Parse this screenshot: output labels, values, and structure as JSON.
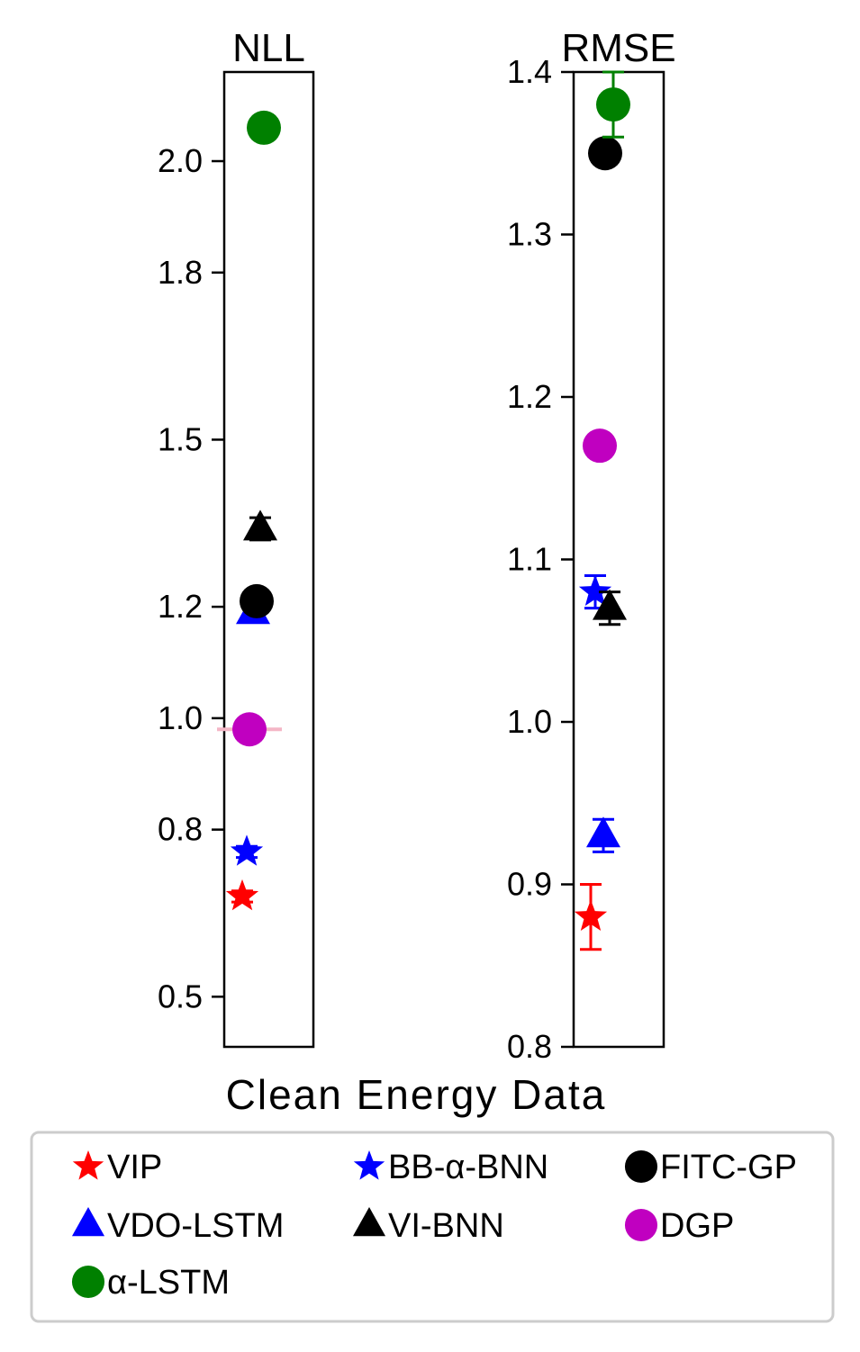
{
  "figure_title": "Clean Energy Data",
  "legend": [
    {
      "label": "VIP",
      "marker": "star",
      "color": "#ff0000"
    },
    {
      "label": "BB-α-BNN",
      "marker": "star",
      "color": "#0000ff"
    },
    {
      "label": "FITC-GP",
      "marker": "circle",
      "color": "#000000"
    },
    {
      "label": "VDO-LSTM",
      "marker": "triangle",
      "color": "#0000ff"
    },
    {
      "label": "VI-BNN",
      "marker": "triangle",
      "color": "#000000"
    },
    {
      "label": "DGP",
      "marker": "circle",
      "color": "#c000c0"
    },
    {
      "label": "α-LSTM",
      "marker": "circle",
      "color": "#008000"
    }
  ],
  "chart_data": [
    {
      "type": "scatter",
      "title": "NLL",
      "xlabel": "",
      "ylabel": "",
      "ylim": [
        0.41,
        2.16
      ],
      "yticks": [
        0.5,
        0.8,
        1.0,
        1.2,
        1.5,
        1.8,
        2.0
      ],
      "ytick_labels": [
        "0.5",
        "0.8",
        "1.0",
        "1.2",
        "1.5",
        "1.8",
        "2.0"
      ],
      "grid": false,
      "points": [
        {
          "name": "VIP",
          "marker": "star",
          "color": "#ff0000",
          "value": 0.68,
          "err": 0.01
        },
        {
          "name": "BB-α-BNN",
          "marker": "star",
          "color": "#0000ff",
          "value": 0.76,
          "err": 0.01
        },
        {
          "name": "VDO-LSTM",
          "marker": "triangle",
          "color": "#0000ff",
          "value": 1.19,
          "err": 0.01
        },
        {
          "name": "VI-BNN",
          "marker": "triangle",
          "color": "#000000",
          "value": 1.34,
          "err": 0.02
        },
        {
          "name": "FITC-GP",
          "marker": "circle",
          "color": "#000000",
          "value": 1.21,
          "err": 0.0
        },
        {
          "name": "DGP",
          "marker": "circle",
          "color": "#c000c0",
          "value": 0.98,
          "err": 0.0
        },
        {
          "name": "α-LSTM",
          "marker": "circle",
          "color": "#008000",
          "value": 2.06,
          "err": 0.0
        }
      ]
    },
    {
      "type": "scatter",
      "title": "RMSE",
      "xlabel": "",
      "ylabel": "",
      "ylim": [
        0.8,
        1.4
      ],
      "yticks": [
        0.8,
        0.9,
        1.0,
        1.1,
        1.2,
        1.3,
        1.4
      ],
      "ytick_labels": [
        "0.8",
        "0.9",
        "1.0",
        "1.1",
        "1.2",
        "1.3",
        "1.4"
      ],
      "grid": false,
      "points": [
        {
          "name": "VIP",
          "marker": "star",
          "color": "#ff0000",
          "value": 0.88,
          "err": 0.02
        },
        {
          "name": "BB-α-BNN",
          "marker": "star",
          "color": "#0000ff",
          "value": 1.08,
          "err": 0.01
        },
        {
          "name": "VDO-LSTM",
          "marker": "triangle",
          "color": "#0000ff",
          "value": 0.93,
          "err": 0.01
        },
        {
          "name": "VI-BNN",
          "marker": "triangle",
          "color": "#000000",
          "value": 1.07,
          "err": 0.01
        },
        {
          "name": "FITC-GP",
          "marker": "circle",
          "color": "#000000",
          "value": 1.35,
          "err": 0.0
        },
        {
          "name": "DGP",
          "marker": "circle",
          "color": "#c000c0",
          "value": 1.17,
          "err": 0.0
        },
        {
          "name": "α-LSTM",
          "marker": "circle",
          "color": "#008000",
          "value": 1.38,
          "err": 0.02
        }
      ]
    }
  ]
}
